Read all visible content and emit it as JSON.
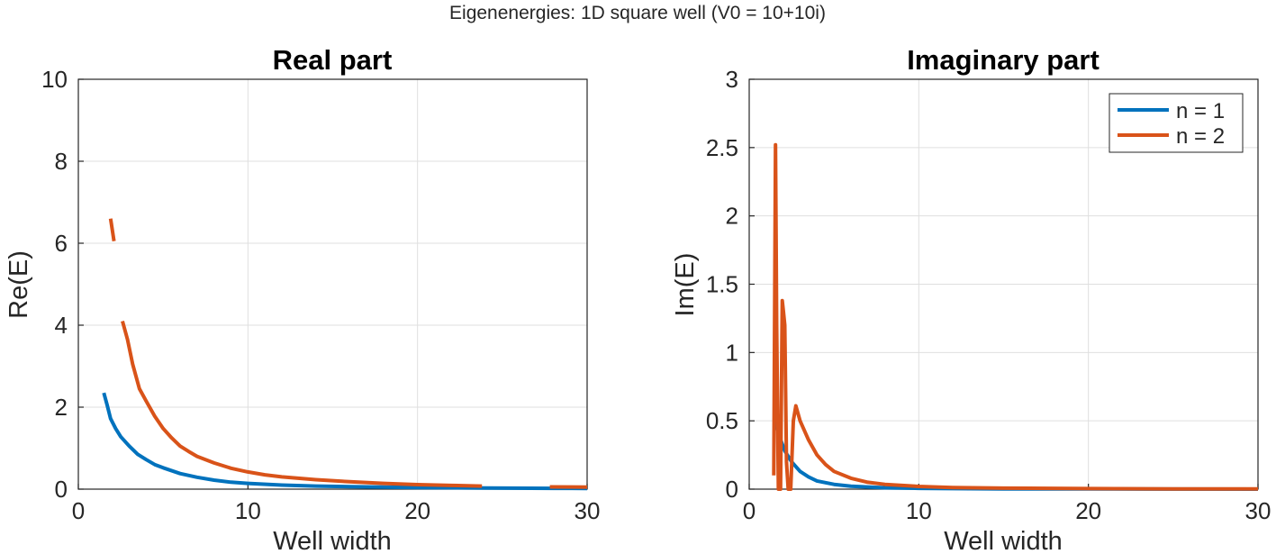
{
  "figure_title": "Eigenenergies: 1D square well (V0 = 10+10i)",
  "colors": {
    "n1": "#0072bd",
    "n2": "#d95319",
    "grid": "#dfdfdf",
    "axis": "#262626"
  },
  "chart_data": [
    {
      "type": "line",
      "title": "Real part",
      "xlabel": "Well width",
      "ylabel": "Re(E)",
      "xlim": [
        0,
        30
      ],
      "ylim": [
        0,
        10
      ],
      "xticks": [
        0,
        10,
        20,
        30
      ],
      "yticks": [
        0,
        2,
        4,
        6,
        8,
        10
      ],
      "grid": true,
      "series": [
        {
          "name": "n = 1",
          "segments": [
            [
              [
                1.5,
                2.35
              ],
              [
                1.7,
                2.05
              ],
              [
                1.9,
                1.72
              ],
              [
                2.2,
                1.48
              ],
              [
                2.5,
                1.28
              ],
              [
                3.0,
                1.05
              ],
              [
                3.5,
                0.85
              ],
              [
                4.0,
                0.72
              ],
              [
                4.5,
                0.6
              ],
              [
                5.0,
                0.52
              ],
              [
                6.0,
                0.38
              ],
              [
                7.0,
                0.29
              ],
              [
                8.0,
                0.22
              ],
              [
                9.0,
                0.17
              ],
              [
                10.0,
                0.14
              ],
              [
                12.0,
                0.1
              ],
              [
                14.0,
                0.075
              ],
              [
                16.0,
                0.06
              ],
              [
                18.0,
                0.048
              ],
              [
                20.0,
                0.04
              ],
              [
                24.0,
                0.028
              ],
              [
                28.0,
                0.02
              ],
              [
                30.0,
                0.018
              ]
            ]
          ]
        },
        {
          "name": "n = 2",
          "segments": [
            [
              [
                1.9,
                6.6
              ],
              [
                2.1,
                6.05
              ]
            ],
            [
              [
                2.6,
                4.1
              ],
              [
                2.9,
                3.65
              ],
              [
                3.2,
                3.05
              ],
              [
                3.6,
                2.45
              ],
              [
                4.0,
                2.15
              ],
              [
                4.5,
                1.78
              ],
              [
                5.0,
                1.48
              ],
              [
                5.5,
                1.25
              ],
              [
                6.0,
                1.05
              ],
              [
                6.5,
                0.92
              ],
              [
                7.0,
                0.8
              ],
              [
                8.0,
                0.64
              ],
              [
                9.0,
                0.51
              ],
              [
                10.0,
                0.42
              ],
              [
                11.0,
                0.35
              ],
              [
                12.0,
                0.3
              ],
              [
                14.0,
                0.23
              ],
              [
                16.0,
                0.18
              ],
              [
                18.0,
                0.14
              ],
              [
                20.0,
                0.11
              ],
              [
                22.0,
                0.09
              ],
              [
                23.8,
                0.075
              ]
            ],
            [
              [
                27.8,
                0.055
              ],
              [
                30.0,
                0.05
              ]
            ]
          ]
        }
      ]
    },
    {
      "type": "line",
      "title": "Imaginary part",
      "xlabel": "Well width",
      "ylabel": "Im(E)",
      "xlim": [
        0,
        30
      ],
      "ylim": [
        0,
        3
      ],
      "xticks": [
        0,
        10,
        20,
        30
      ],
      "yticks": [
        0,
        0.5,
        1,
        1.5,
        2,
        2.5,
        3
      ],
      "grid": true,
      "legend": "top-right",
      "series": [
        {
          "name": "n = 1",
          "segments": [
            [
              [
                1.5,
                0.52
              ],
              [
                1.8,
                0.38
              ],
              [
                2.1,
                0.28
              ],
              [
                2.5,
                0.2
              ],
              [
                3.0,
                0.13
              ],
              [
                3.5,
                0.09
              ],
              [
                4.0,
                0.06
              ],
              [
                5.0,
                0.035
              ],
              [
                6.0,
                0.022
              ],
              [
                8.0,
                0.01
              ],
              [
                10.0,
                0.006
              ],
              [
                15.0,
                0.002
              ],
              [
                20.0,
                0.001
              ],
              [
                30.0,
                0.0
              ]
            ]
          ]
        },
        {
          "name": "n = 2",
          "segments": [
            [
              [
                1.45,
                0.1
              ],
              [
                1.55,
                2.52
              ],
              [
                1.62,
                1.2
              ],
              [
                1.72,
                0.0
              ],
              [
                1.85,
                0.0
              ],
              [
                1.95,
                1.38
              ],
              [
                2.02,
                1.3
              ],
              [
                2.1,
                1.2
              ],
              [
                2.2,
                0.2
              ],
              [
                2.3,
                0.0
              ],
              [
                2.45,
                0.0
              ],
              [
                2.6,
                0.5
              ],
              [
                2.75,
                0.61
              ],
              [
                3.0,
                0.5
              ],
              [
                3.5,
                0.36
              ],
              [
                4.0,
                0.25
              ],
              [
                4.5,
                0.18
              ],
              [
                5.0,
                0.13
              ],
              [
                6.0,
                0.08
              ],
              [
                7.0,
                0.05
              ],
              [
                8.0,
                0.035
              ],
              [
                10.0,
                0.02
              ],
              [
                12.0,
                0.012
              ],
              [
                15.0,
                0.007
              ],
              [
                20.0,
                0.004
              ],
              [
                25.0,
                0.002
              ],
              [
                30.0,
                0.001
              ]
            ]
          ]
        }
      ]
    }
  ]
}
